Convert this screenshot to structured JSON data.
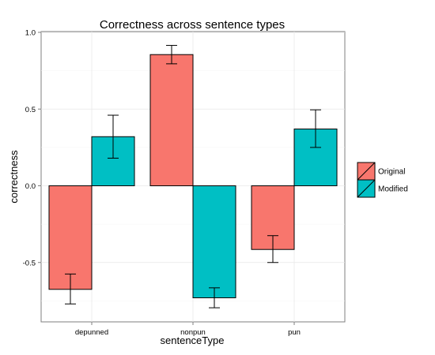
{
  "chart_data": {
    "type": "bar",
    "title": "Correctness across sentence types",
    "xlabel": "sentenceType",
    "ylabel": "correctness",
    "categories": [
      "depunned",
      "nonpun",
      "pun"
    ],
    "series": [
      {
        "name": "Original",
        "color": "#F8766D",
        "values": [
          -0.675,
          0.855,
          -0.415
        ],
        "error_low": [
          -0.77,
          0.795,
          -0.5
        ],
        "error_high": [
          -0.575,
          0.915,
          -0.325
        ]
      },
      {
        "name": "Modified",
        "color": "#00BFC4",
        "values": [
          0.32,
          -0.73,
          0.37
        ],
        "error_low": [
          0.18,
          -0.795,
          0.25
        ],
        "error_high": [
          0.46,
          -0.665,
          0.495
        ]
      }
    ],
    "ylim": [
      -0.88,
      1.0
    ],
    "yticks": [
      1.0,
      0.5,
      0.0,
      -0.5
    ],
    "ytick_labels": [
      "1.0",
      "0.5",
      "0.0",
      "-0.5"
    ],
    "grid": true,
    "legend_position": "right"
  }
}
